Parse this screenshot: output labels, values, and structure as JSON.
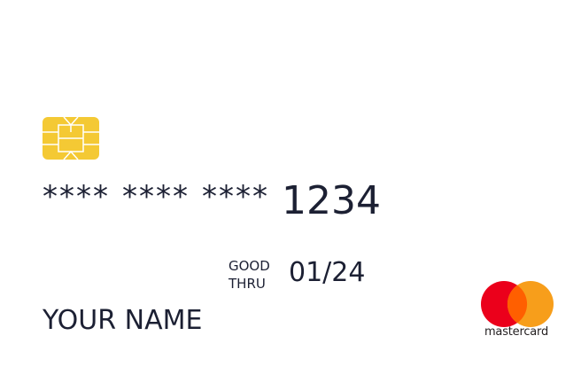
{
  "card": {
    "masked_groups": [
      "****",
      "****",
      "****"
    ],
    "last_four": "1234",
    "good_thru_line1": "GOOD",
    "good_thru_line2": "THRU",
    "expiry": "01/24",
    "holder_name": "YOUR NAME",
    "brand_name": "mastercard",
    "brand_icon": "mastercard-logo",
    "chip_icon": "emv-chip-icon",
    "colors": {
      "chip": "#f4c934",
      "text": "#1c2033",
      "brand_red": "#eb001b",
      "brand_orange": "#f79e1b",
      "brand_overlap": "#ff5f00",
      "background": "#ffffff"
    }
  }
}
